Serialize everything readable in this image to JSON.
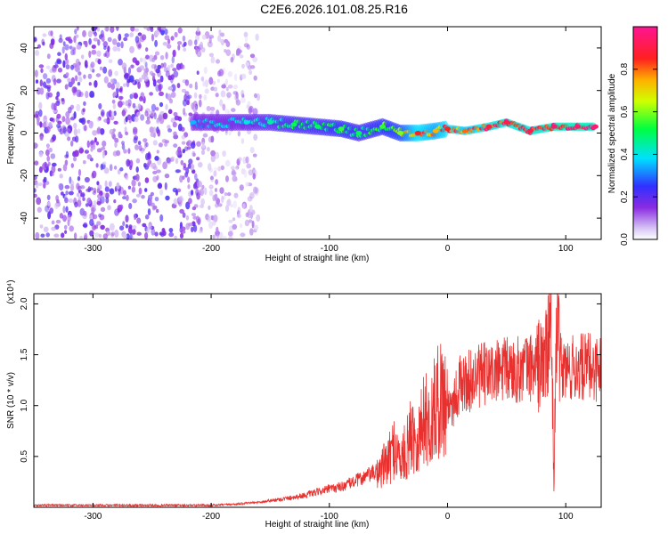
{
  "title": "C2E6.2026.101.08.25.R16",
  "colors": {
    "snr_line": "#e8312f",
    "scatter": "#8a2be2",
    "background": "#ffffff"
  },
  "chart_data": [
    {
      "type": "heatmap",
      "xlabel": "Height of straight line (km)",
      "ylabel": "Frequency (Hz)",
      "xlim": [
        -350,
        130
      ],
      "ylim": [
        -50,
        50
      ],
      "x_ticks": [
        -300,
        -200,
        -100,
        0,
        100
      ],
      "y_ticks": [
        -40,
        -20,
        0,
        20,
        40
      ],
      "colorbar": {
        "label": "Normalized spectral amplitude",
        "range": [
          0,
          1
        ],
        "ticks": [
          "0.0",
          "0.2",
          "0.4",
          "0.6",
          "0.8"
        ],
        "colormap": "rainbow (violet → blue → cyan → green → yellow → orange → red → magenta)"
      },
      "description_series": [
        {
          "x_range": [
            -350,
            -210
          ],
          "pattern": "noise",
          "y_range": [
            -50,
            50
          ],
          "amplitude": 0.15
        },
        {
          "x_range": [
            -210,
            -160
          ],
          "pattern": "noise",
          "y_range": [
            -50,
            50
          ],
          "amplitude": 0.08
        },
        {
          "x": -215,
          "y": 5,
          "amplitude": 0.35
        },
        {
          "x": -170,
          "y": 5,
          "amplitude": 0.4
        },
        {
          "x": -150,
          "y": 5,
          "amplitude": 0.45
        },
        {
          "x": -130,
          "y": 4,
          "amplitude": 0.5
        },
        {
          "x": -110,
          "y": 3,
          "amplitude": 0.5
        },
        {
          "x": -90,
          "y": 2,
          "amplitude": 0.55
        },
        {
          "x": -75,
          "y": 0,
          "amplitude": 0.5
        },
        {
          "x": -55,
          "y": 3,
          "amplitude": 0.55
        },
        {
          "x": -40,
          "y": 0,
          "amplitude": 0.6
        },
        {
          "x": -25,
          "y": 0,
          "amplitude": 0.85
        },
        {
          "x": -10,
          "y": 1,
          "amplitude": 0.75
        },
        {
          "x": 0,
          "y": 2,
          "amplitude": 0.85
        },
        {
          "x": 15,
          "y": 1,
          "amplitude": 0.8
        },
        {
          "x": 35,
          "y": 3,
          "amplitude": 0.9
        },
        {
          "x": 50,
          "y": 5,
          "amplitude": 0.9
        },
        {
          "x": 70,
          "y": 1,
          "amplitude": 0.9
        },
        {
          "x": 90,
          "y": 3,
          "amplitude": 0.95
        },
        {
          "x": 110,
          "y": 3,
          "amplitude": 0.95
        },
        {
          "x": 125,
          "y": 3,
          "amplitude": 0.95
        }
      ]
    },
    {
      "type": "line",
      "xlabel": "Height of straight line (km)",
      "ylabel": "SNR (10 * v/v)",
      "y_multiplier": "(x10⁴)",
      "xlim": [
        -350,
        130
      ],
      "ylim": [
        0,
        2.1
      ],
      "x_ticks": [
        -300,
        -200,
        -100,
        0,
        100
      ],
      "y_ticks": [
        "0.5",
        "1.0",
        "1.5",
        "2.0"
      ],
      "series": [
        {
          "x": [
            -350,
            -300,
            -250,
            -200,
            -180,
            -160,
            -140,
            -120,
            -100,
            -90,
            -80,
            -70,
            -60,
            -50,
            -45,
            -40,
            -35,
            -30,
            -25,
            -20,
            -15,
            -10,
            -5,
            0,
            5,
            10,
            20,
            30,
            40,
            50,
            60,
            70,
            80,
            85,
            88,
            90,
            92,
            95,
            100,
            110,
            120,
            130
          ],
          "y": [
            0.02,
            0.02,
            0.02,
            0.02,
            0.03,
            0.05,
            0.08,
            0.12,
            0.18,
            0.2,
            0.25,
            0.3,
            0.35,
            0.45,
            0.6,
            0.45,
            0.55,
            0.75,
            0.65,
            0.9,
            0.8,
            1.0,
            1.1,
            1.0,
            1.05,
            1.2,
            1.25,
            1.3,
            1.32,
            1.35,
            1.35,
            1.38,
            1.4,
            1.55,
            1.8,
            0.15,
            1.9,
            1.4,
            1.35,
            1.37,
            1.38,
            1.37
          ]
        }
      ]
    }
  ]
}
